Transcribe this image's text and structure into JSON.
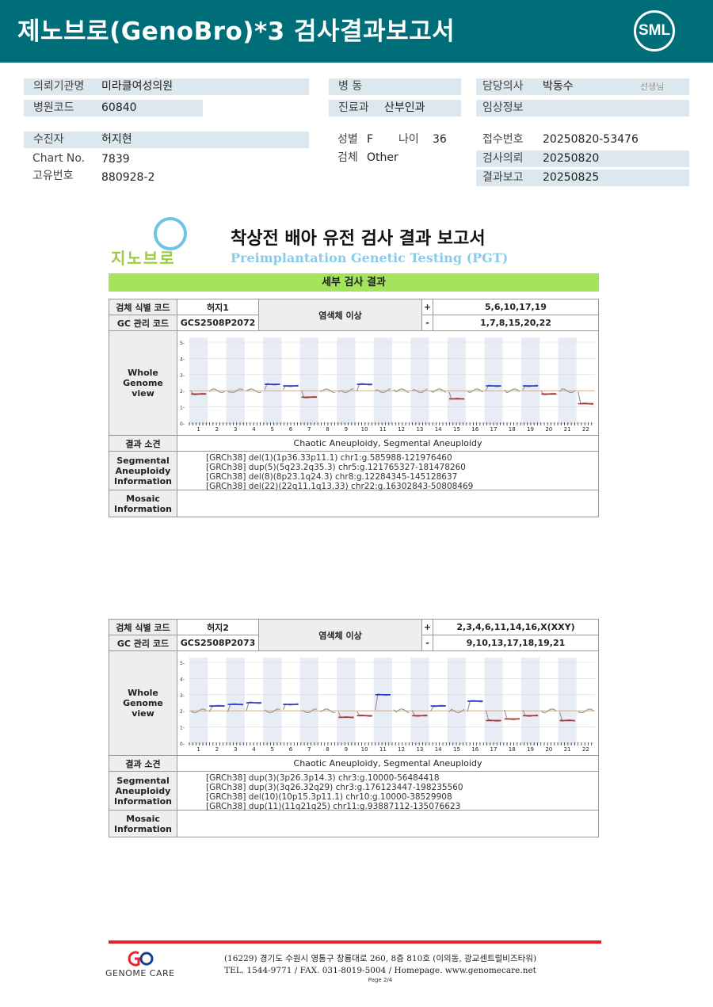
{
  "header": {
    "title": "제노브로(GenoBro)*3 검사결과보고서",
    "logo": "SML",
    "background": "#006e79"
  },
  "patient": {
    "institution_label": "의뢰기관명",
    "institution": "미라클여성의원",
    "hospital_code_label": "병원코드",
    "hospital_code": "60840",
    "ward_label": "병 동",
    "ward": "",
    "dept_label": "진료과",
    "dept": "산부인과",
    "doctor_label": "담당의사",
    "doctor": "박동수",
    "doctor_suffix": "선생님",
    "clinical_label": "임상정보",
    "clinical": "",
    "recipient_label": "수진자",
    "recipient": "허지현",
    "chart_label": "Chart No.",
    "chart": "7839",
    "unique_label": "고유번호",
    "unique": "880928-2",
    "sex_label": "성별",
    "sex": "F",
    "age_label": "나이",
    "age": "36",
    "specimen_label": "검체",
    "specimen": "Other",
    "receipt_label": "접수번호",
    "receipt": "20250820-53476",
    "request_label": "검사의뢰",
    "request": "20250820",
    "report_label": "결과보고",
    "report": "20250825"
  },
  "pgt": {
    "logo_text": "지노브로",
    "title": "착상전 배아 유전 검사 결과 보고서",
    "subtitle": "Preimplantation Genetic Testing (PGT)",
    "section": "세부 검사 결과"
  },
  "labels": {
    "sample_id": "검체 식별 코드",
    "gc_code": "GC 관리 코드",
    "abnormal": "염색체 이상",
    "plus": "+",
    "minus": "-",
    "wgv": "Whole Genome view",
    "result": "결과 소견",
    "segmental": "Segmental Aneuploidy Information",
    "mosaic": "Mosaic Information"
  },
  "samples": [
    {
      "id": "허지1",
      "gc": "GCS2508P2072",
      "plus": "5,6,10,17,19",
      "minus": "1,7,8,15,20,22",
      "result": "Chaotic Aneuploidy, Segmental Aneuploidy",
      "segmental": [
        "[GRCh38] del(1)(1p36.33p11.1) chr1:g.585988-121976460",
        "[GRCh38] dup(5)(5q23.2q35.3) chr5:g.121765327-181478260",
        "[GRCh38] del(8)(8p23.1q24.3) chr8:g.12284345-145128637",
        "[GRCh38] del(22)(22q11.1q13.33) chr22:g.16302843-50808469"
      ],
      "mosaic": "",
      "cn": [
        1.8,
        2.0,
        2.0,
        2.0,
        2.4,
        2.3,
        1.6,
        1.9,
        2.0,
        2.4,
        2.0,
        2.0,
        2.0,
        1.9,
        1.5,
        2.0,
        2.3,
        2.0,
        2.3,
        1.8,
        2.0,
        1.2
      ]
    },
    {
      "id": "허지2",
      "gc": "GCS2508P2073",
      "plus": "2,3,4,6,11,14,16,X(XXY)",
      "minus": "9,10,13,17,18,19,21",
      "result": "Chaotic Aneuploidy, Segmental Aneuploidy",
      "segmental": [
        "[GRCh38] dup(3)(3p26.3p14.3) chr3:g.10000-56484418",
        "[GRCh38] dup(3)(3q26.32q29) chr3:g.176123447-198235560",
        "[GRCh38] del(10)(10p15.3p11.1) chr10:g.10000-38529908",
        "[GRCh38] dup(11)(11q21q25) chr11:g.93887112-135076623"
      ],
      "mosaic": "",
      "cn": [
        2.0,
        2.3,
        2.4,
        2.5,
        2.0,
        2.4,
        2.0,
        2.0,
        1.6,
        1.7,
        3.0,
        2.0,
        1.7,
        2.3,
        2.0,
        2.6,
        1.4,
        1.5,
        1.7,
        2.0,
        1.4,
        2.0
      ]
    }
  ],
  "axis": {
    "y_ticks": [
      "5-",
      "4-",
      "3-",
      "2-",
      "1-",
      "0-"
    ],
    "chromosomes": [
      "1",
      "2",
      "3",
      "4",
      "5",
      "6",
      "7",
      "8",
      "9",
      "10",
      "11",
      "12",
      "13",
      "14",
      "15",
      "16",
      "17",
      "18",
      "19",
      "20",
      "21",
      "22"
    ]
  },
  "footer": {
    "company": "GENOME CARE",
    "address": "(16229) 경기도 수원시 영통구 창룡대로 260, 8층 810호 (이의동, 광교센트럴비즈타워)",
    "contact": "TEL. 1544-9771 / FAX. 031-8019-5004 / Homepage. www.genomecare.net",
    "page": "Page 2/4"
  },
  "colors": {
    "gain": "#2233cc",
    "loss": "#cc2222",
    "normal": "#888888",
    "ref_line": "#e8a040"
  }
}
